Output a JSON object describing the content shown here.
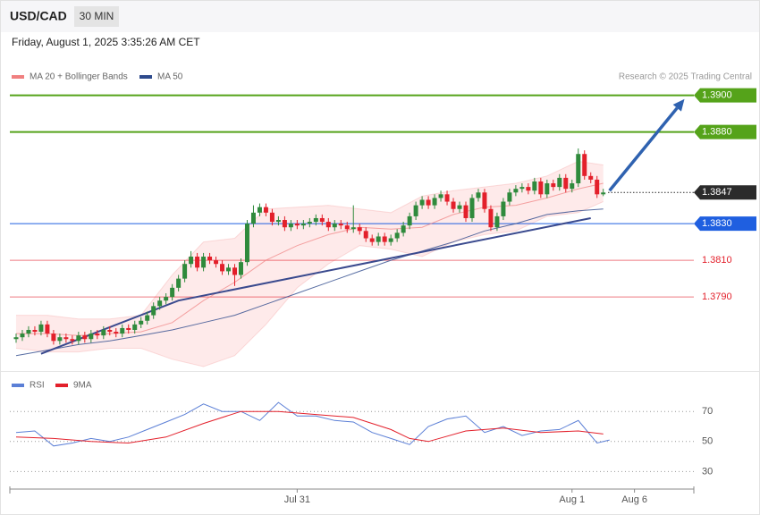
{
  "header": {
    "symbol": "USD/CAD",
    "timeframe": "30 MIN",
    "datetime": "Friday, August 1, 2025 3:35:26 AM CET"
  },
  "chart_data": [
    {
      "type": "candlestick",
      "source": "Research © 2025 Trading Central",
      "xlim": [
        -1,
        108.5
      ],
      "ylim": [
        1.3752,
        1.3933
      ],
      "up_color": "#2f8a3c",
      "down_color": "#e3202b",
      "candles": {
        "open": [
          1.3767,
          1.3768,
          1.377,
          1.3772,
          1.3771,
          1.3775,
          1.377,
          1.3766,
          1.3768,
          1.3767,
          1.3766,
          1.3769,
          1.3767,
          1.377,
          1.3769,
          1.3772,
          1.3771,
          1.377,
          1.3773,
          1.3772,
          1.3775,
          1.3777,
          1.378,
          1.3785,
          1.3788,
          1.379,
          1.3795,
          1.38,
          1.3808,
          1.3812,
          1.3806,
          1.3812,
          1.381,
          1.3808,
          1.3804,
          1.3806,
          1.3802,
          1.3809,
          1.383,
          1.3836,
          1.3839,
          1.3836,
          1.3831,
          1.3832,
          1.3828,
          1.383,
          1.3829,
          1.383,
          1.3831,
          1.3833,
          1.3831,
          1.3828,
          1.383,
          1.3829,
          1.3827,
          1.3828,
          1.3826,
          1.3822,
          1.382,
          1.3823,
          1.382,
          1.3822,
          1.3825,
          1.3829,
          1.3834,
          1.384,
          1.3843,
          1.384,
          1.3844,
          1.3846,
          1.3842,
          1.3838,
          1.384,
          1.3833,
          1.3844,
          1.3847,
          1.3838,
          1.3828,
          1.3834,
          1.3842,
          1.3847,
          1.3849,
          1.385,
          1.3848,
          1.3853,
          1.3846,
          1.3852,
          1.385,
          1.3855,
          1.3849,
          1.3852,
          1.3868,
          1.3856,
          1.3854,
          1.3846
        ],
        "high": [
          1.377,
          1.3772,
          1.3774,
          1.3774,
          1.3777,
          1.3777,
          1.3772,
          1.377,
          1.377,
          1.3769,
          1.3771,
          1.3771,
          1.3772,
          1.3772,
          1.3774,
          1.3774,
          1.3773,
          1.3775,
          1.3775,
          1.3777,
          1.3779,
          1.3782,
          1.3787,
          1.379,
          1.3792,
          1.3797,
          1.3802,
          1.381,
          1.3815,
          1.3814,
          1.3814,
          1.3814,
          1.3812,
          1.381,
          1.3808,
          1.3808,
          1.3811,
          1.3832,
          1.384,
          1.3841,
          1.3841,
          1.3838,
          1.3834,
          1.3834,
          1.3832,
          1.3832,
          1.3832,
          1.3833,
          1.3835,
          1.3835,
          1.3833,
          1.3832,
          1.3832,
          1.3831,
          1.384,
          1.383,
          1.3828,
          1.3824,
          1.3825,
          1.3825,
          1.3824,
          1.3827,
          1.3831,
          1.3836,
          1.3842,
          1.3845,
          1.3845,
          1.3846,
          1.3848,
          1.3848,
          1.3844,
          1.3842,
          1.3842,
          1.3846,
          1.3849,
          1.3849,
          1.384,
          1.3836,
          1.3844,
          1.3849,
          1.3851,
          1.3852,
          1.3852,
          1.3855,
          1.3855,
          1.3854,
          1.3854,
          1.3857,
          1.3857,
          1.3854,
          1.3871,
          1.387,
          1.3858,
          1.3856,
          1.3849
        ],
        "low": [
          1.3765,
          1.3766,
          1.3768,
          1.3769,
          1.3769,
          1.3768,
          1.3764,
          1.3764,
          1.3765,
          1.3764,
          1.3764,
          1.3765,
          1.3765,
          1.3767,
          1.3767,
          1.3769,
          1.3768,
          1.3768,
          1.377,
          1.377,
          1.3773,
          1.3775,
          1.3778,
          1.3783,
          1.3786,
          1.3788,
          1.3793,
          1.3798,
          1.3806,
          1.3804,
          1.3804,
          1.3808,
          1.3806,
          1.3802,
          1.3802,
          1.3796,
          1.38,
          1.3807,
          1.3828,
          1.3834,
          1.3834,
          1.3829,
          1.3829,
          1.3826,
          1.3826,
          1.3827,
          1.3827,
          1.3828,
          1.3829,
          1.3829,
          1.3826,
          1.3826,
          1.3827,
          1.3825,
          1.3825,
          1.3824,
          1.382,
          1.3818,
          1.3818,
          1.3818,
          1.3818,
          1.382,
          1.3823,
          1.3827,
          1.3832,
          1.3838,
          1.3838,
          1.3838,
          1.3842,
          1.384,
          1.3836,
          1.3836,
          1.3831,
          1.3831,
          1.3842,
          1.3836,
          1.3826,
          1.3826,
          1.3832,
          1.384,
          1.3845,
          1.3847,
          1.3846,
          1.3846,
          1.3844,
          1.3844,
          1.3848,
          1.3848,
          1.3847,
          1.3847,
          1.385,
          1.3854,
          1.3852,
          1.3844,
          1.3845
        ],
        "close": [
          1.3768,
          1.377,
          1.3772,
          1.3771,
          1.3775,
          1.377,
          1.3766,
          1.3768,
          1.3767,
          1.3766,
          1.3769,
          1.3767,
          1.377,
          1.3769,
          1.3772,
          1.3771,
          1.377,
          1.3773,
          1.3772,
          1.3775,
          1.3777,
          1.378,
          1.3785,
          1.3788,
          1.379,
          1.3795,
          1.38,
          1.3808,
          1.3812,
          1.3806,
          1.3812,
          1.381,
          1.3808,
          1.3804,
          1.3806,
          1.3802,
          1.3809,
          1.383,
          1.3836,
          1.3839,
          1.3836,
          1.3831,
          1.3832,
          1.3828,
          1.383,
          1.3829,
          1.383,
          1.3831,
          1.3833,
          1.3831,
          1.3828,
          1.383,
          1.3829,
          1.3827,
          1.3828,
          1.3826,
          1.3822,
          1.382,
          1.3823,
          1.382,
          1.3822,
          1.3825,
          1.3829,
          1.3834,
          1.384,
          1.3843,
          1.384,
          1.3844,
          1.3846,
          1.3842,
          1.3838,
          1.384,
          1.3833,
          1.3844,
          1.3847,
          1.3838,
          1.3828,
          1.3834,
          1.3842,
          1.3847,
          1.3849,
          1.385,
          1.3848,
          1.3853,
          1.3846,
          1.3852,
          1.385,
          1.3855,
          1.3849,
          1.3852,
          1.3868,
          1.3856,
          1.3854,
          1.3846,
          1.3847
        ]
      },
      "series": [
        {
          "name": "MA 20 + Bollinger Bands",
          "color": "#f08080",
          "band_color": "#fde3e3",
          "x": [
            0,
            5,
            10,
            15,
            20,
            25,
            30,
            35,
            40,
            45,
            50,
            55,
            60,
            65,
            70,
            75,
            80,
            85,
            90,
            94
          ],
          "values": [
            1.377,
            1.377,
            1.3769,
            1.377,
            1.3771,
            1.3776,
            1.3788,
            1.3798,
            1.381,
            1.3818,
            1.3824,
            1.3828,
            1.3827,
            1.3828,
            1.3835,
            1.3839,
            1.384,
            1.3844,
            1.3849,
            1.3852
          ],
          "upper": [
            1.378,
            1.378,
            1.3778,
            1.3778,
            1.378,
            1.3802,
            1.382,
            1.3822,
            1.3838,
            1.3839,
            1.384,
            1.3838,
            1.3836,
            1.3845,
            1.3848,
            1.385,
            1.3852,
            1.3856,
            1.3864,
            1.3862
          ],
          "lower": [
            1.3762,
            1.376,
            1.376,
            1.3762,
            1.3762,
            1.3756,
            1.3752,
            1.3758,
            1.3775,
            1.3795,
            1.3808,
            1.3818,
            1.3816,
            1.3812,
            1.382,
            1.3824,
            1.3826,
            1.3834,
            1.3836,
            1.3842
          ]
        },
        {
          "name": "MA 50",
          "color": "#2e4a8c",
          "x": [
            0,
            5,
            10,
            15,
            20,
            25,
            30,
            35,
            40,
            45,
            50,
            55,
            60,
            65,
            70,
            75,
            80,
            85,
            90,
            94
          ],
          "values": [
            1.3758,
            1.3761,
            1.3764,
            1.3766,
            1.3769,
            1.3772,
            1.3776,
            1.378,
            1.3786,
            1.3792,
            1.3798,
            1.3804,
            1.381,
            1.3815,
            1.382,
            1.3826,
            1.383,
            1.3835,
            1.3837,
            1.3838
          ]
        }
      ],
      "trendline": {
        "color": "#3a4a8e",
        "x": [
          4,
          26,
          92
        ],
        "values": [
          1.3759,
          1.3788,
          1.3833
        ]
      },
      "arrow": {
        "color": "#2f62b0",
        "x": [
          95,
          107
        ],
        "values": [
          1.3848,
          1.3898
        ]
      },
      "levels": [
        {
          "value": 1.39,
          "label": "1.3900",
          "color": "#55a31a",
          "tag": true,
          "line": "solid"
        },
        {
          "value": 1.388,
          "label": "1.3880",
          "color": "#55a31a",
          "tag": true,
          "line": "solid"
        },
        {
          "value": 1.3847,
          "label": "1.3847",
          "color": "#2b2b2b",
          "tag": true,
          "line": "dotted"
        },
        {
          "value": 1.383,
          "label": "1.3830",
          "color": "#1f5fe0",
          "tag": true,
          "line": "solid"
        },
        {
          "value": 1.381,
          "label": "1.3810",
          "color": "#e3202b",
          "tag": false,
          "line": "solid"
        },
        {
          "value": 1.379,
          "label": "1.3790",
          "color": "#e3202b",
          "tag": false,
          "line": "solid"
        }
      ]
    },
    {
      "type": "line",
      "xlim": [
        -1,
        108.5
      ],
      "ylim": [
        19.5,
        88
      ],
      "yticks": [
        30,
        50,
        70
      ],
      "grid": true,
      "xticks": [
        {
          "value": 45,
          "label": "Jul 31"
        },
        {
          "value": 89,
          "label": "Aug 1"
        },
        {
          "value": 99,
          "label": "Aug 6"
        }
      ],
      "series": [
        {
          "name": "RSI",
          "color": "#5b7fd6",
          "x": [
            0,
            3,
            6,
            9,
            12,
            15,
            18,
            21,
            24,
            27,
            30,
            33,
            36,
            39,
            42,
            45,
            48,
            51,
            54,
            57,
            60,
            63,
            66,
            69,
            72,
            75,
            78,
            81,
            84,
            87,
            90,
            93,
            95
          ],
          "values": [
            56,
            57,
            47,
            49,
            52,
            50,
            53,
            58,
            63,
            68,
            75,
            70,
            70,
            64,
            76,
            67,
            67,
            64,
            63,
            56,
            52,
            48,
            60,
            65,
            67,
            56,
            60,
            54,
            57,
            58,
            64,
            49,
            51
          ]
        },
        {
          "name": "9MA",
          "color": "#e3202b",
          "x": [
            0,
            6,
            12,
            18,
            24,
            30,
            36,
            42,
            48,
            54,
            60,
            63,
            66,
            72,
            78,
            84,
            90,
            94
          ],
          "values": [
            53,
            52,
            50,
            49,
            53,
            62,
            70,
            70,
            68,
            66,
            58,
            52,
            50,
            57,
            59,
            56,
            57,
            55
          ]
        }
      ]
    }
  ]
}
